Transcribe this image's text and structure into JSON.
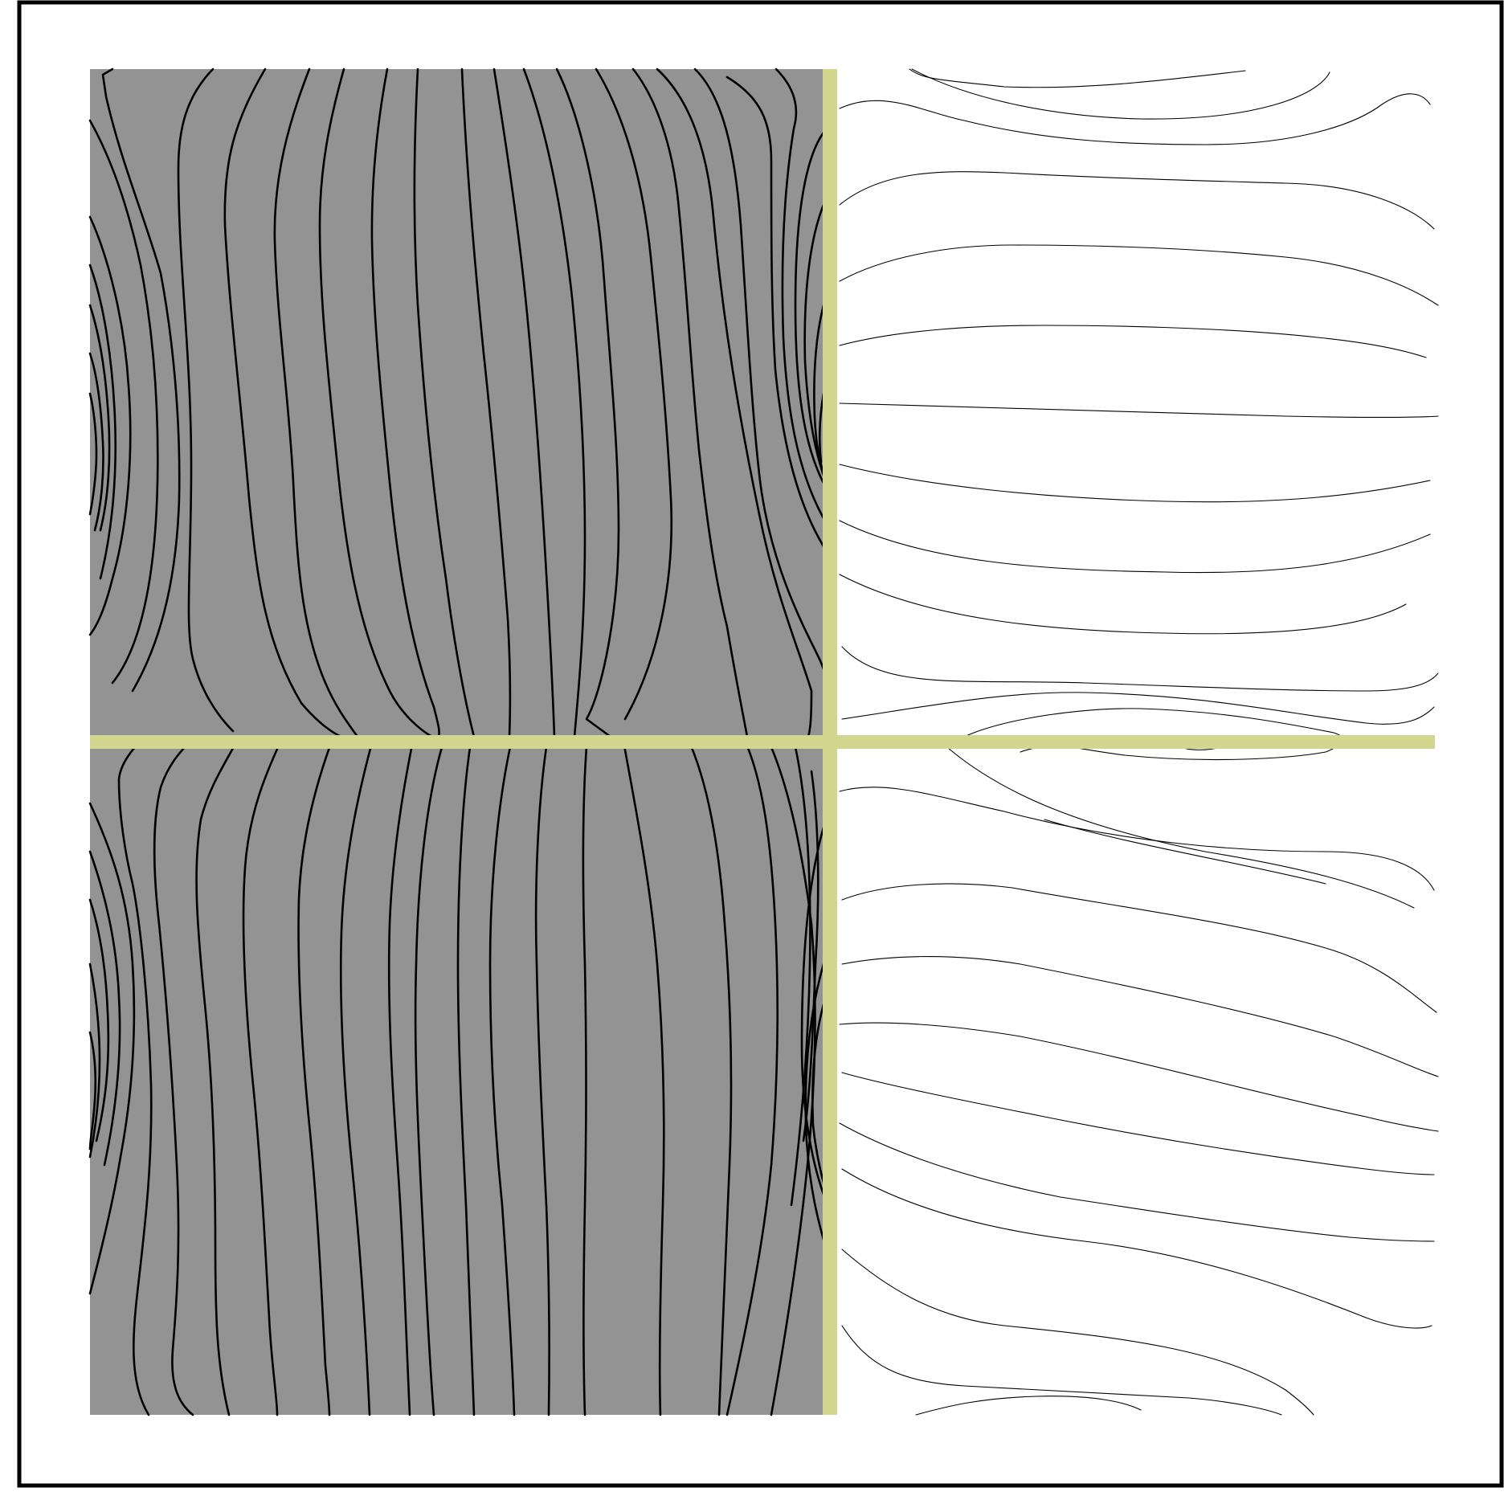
{
  "figure": {
    "colors": {
      "background": "#ffffff",
      "frame": "#000000",
      "dark_region": "#939393",
      "interface": "#d3d68e",
      "streamline": "#000000"
    }
  }
}
